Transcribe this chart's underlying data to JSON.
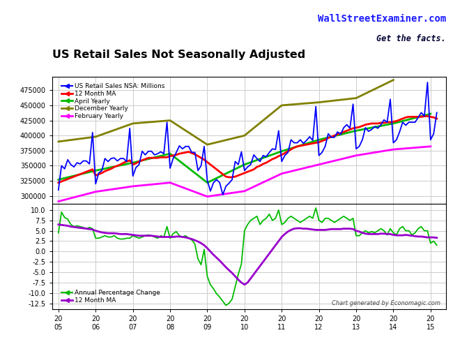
{
  "title": "US Retail Sales Not Seasonally Adjusted",
  "title_color": "#000000",
  "watermark1": "WallStreetExaminer.com",
  "watermark2": "Get the facts.",
  "watermark_color": "#1a1aff",
  "credit": "Chart generated by Economagic.com",
  "bg_color": "#FFFFFF",
  "plot_bg_color": "#FFFFFF",
  "grid_color": "#CCCCCC",
  "upper_ylim": [
    287000,
    497000
  ],
  "upper_yticks": [
    300000,
    325000,
    350000,
    375000,
    400000,
    425000,
    450000,
    475000
  ],
  "lower_ylim": [
    -14.0,
    11.5
  ],
  "lower_yticks": [
    -12.5,
    -10.0,
    -7.5,
    -5.0,
    -2.5,
    0.0,
    2.5,
    5.0,
    7.5,
    10.0
  ],
  "legend_upper": [
    {
      "label": "US Retail Sales NSA: Millions",
      "color": "#0000FF",
      "lw": 1.5
    },
    {
      "label": "12 Month MA",
      "color": "#FF0000",
      "lw": 2
    },
    {
      "label": "April Yearly",
      "color": "#00BB00",
      "lw": 2
    },
    {
      "label": "December Yearly",
      "color": "#808000",
      "lw": 2
    },
    {
      "label": "February Yearly",
      "color": "#FF00FF",
      "lw": 2
    }
  ],
  "legend_lower": [
    {
      "label": "Annual Percentage Change",
      "color": "#00BB00",
      "lw": 1.5
    },
    {
      "label": "12 Month MA",
      "color": "#9900CC",
      "lw": 2
    }
  ],
  "nsa_x": [
    2005.0,
    2005.083,
    2005.167,
    2005.25,
    2005.333,
    2005.417,
    2005.5,
    2005.583,
    2005.667,
    2005.75,
    2005.833,
    2005.917,
    2006.0,
    2006.083,
    2006.167,
    2006.25,
    2006.333,
    2006.417,
    2006.5,
    2006.583,
    2006.667,
    2006.75,
    2006.833,
    2006.917,
    2007.0,
    2007.083,
    2007.167,
    2007.25,
    2007.333,
    2007.417,
    2007.5,
    2007.583,
    2007.667,
    2007.75,
    2007.833,
    2007.917,
    2008.0,
    2008.083,
    2008.167,
    2008.25,
    2008.333,
    2008.417,
    2008.5,
    2008.583,
    2008.667,
    2008.75,
    2008.833,
    2008.917,
    2009.0,
    2009.083,
    2009.167,
    2009.25,
    2009.333,
    2009.417,
    2009.5,
    2009.583,
    2009.667,
    2009.75,
    2009.833,
    2009.917,
    2010.0,
    2010.083,
    2010.167,
    2010.25,
    2010.333,
    2010.417,
    2010.5,
    2010.583,
    2010.667,
    2010.75,
    2010.833,
    2010.917,
    2011.0,
    2011.083,
    2011.167,
    2011.25,
    2011.333,
    2011.417,
    2011.5,
    2011.583,
    2011.667,
    2011.75,
    2011.833,
    2011.917,
    2012.0,
    2012.083,
    2012.167,
    2012.25,
    2012.333,
    2012.417,
    2012.5,
    2012.583,
    2012.667,
    2012.75,
    2012.833,
    2012.917,
    2013.0,
    2013.083,
    2013.167,
    2013.25,
    2013.333,
    2013.417,
    2013.5,
    2013.583,
    2013.667,
    2013.75,
    2013.833,
    2013.917,
    2014.0,
    2014.083,
    2014.167,
    2014.25,
    2014.333,
    2014.417,
    2014.5,
    2014.583,
    2014.667,
    2014.75,
    2014.833,
    2014.917,
    2015.0,
    2015.083,
    2015.167
  ],
  "nsa_y": [
    310000,
    350000,
    345000,
    360000,
    352000,
    348000,
    355000,
    353000,
    358000,
    358000,
    353000,
    405000,
    320000,
    338000,
    342000,
    362000,
    357000,
    362000,
    363000,
    358000,
    362000,
    362000,
    357000,
    412000,
    333000,
    347000,
    352000,
    374000,
    368000,
    374000,
    374000,
    368000,
    370000,
    373000,
    370000,
    422000,
    346000,
    362000,
    372000,
    383000,
    378000,
    382000,
    382000,
    372000,
    372000,
    342000,
    350000,
    382000,
    326000,
    308000,
    322000,
    327000,
    322000,
    302000,
    316000,
    321000,
    327000,
    357000,
    352000,
    373000,
    342000,
    348000,
    352000,
    368000,
    362000,
    357000,
    367000,
    365000,
    372000,
    378000,
    377000,
    408000,
    357000,
    367000,
    372000,
    393000,
    388000,
    388000,
    393000,
    387000,
    392000,
    398000,
    392000,
    448000,
    367000,
    372000,
    382000,
    403000,
    397000,
    397000,
    406000,
    402000,
    413000,
    418000,
    412000,
    452000,
    378000,
    382000,
    393000,
    413000,
    407000,
    410000,
    415000,
    412000,
    418000,
    426000,
    422000,
    460000,
    388000,
    393000,
    406000,
    422000,
    417000,
    422000,
    422000,
    422000,
    430000,
    438000,
    432000,
    488000,
    393000,
    403000,
    438000
  ],
  "ma12_y": [
    322000,
    324000,
    326000,
    328000,
    330000,
    332000,
    334000,
    336000,
    338000,
    340000,
    342000,
    344000,
    334000,
    336000,
    338000,
    341000,
    343000,
    345000,
    348000,
    350000,
    352000,
    355000,
    357000,
    359000,
    352000,
    354000,
    357000,
    359000,
    361000,
    363000,
    363000,
    363000,
    363000,
    364000,
    364000,
    364000,
    366000,
    367000,
    368000,
    370000,
    371000,
    372000,
    373000,
    371000,
    369000,
    366000,
    363000,
    360000,
    356000,
    352000,
    348000,
    344000,
    340000,
    336000,
    332000,
    331000,
    331000,
    332000,
    334000,
    336000,
    338000,
    340000,
    342000,
    344000,
    348000,
    350000,
    353000,
    355000,
    358000,
    361000,
    363000,
    366000,
    368000,
    371000,
    374000,
    377000,
    380000,
    382000,
    383000,
    384000,
    385000,
    386000,
    387000,
    388000,
    389000,
    391000,
    393000,
    396000,
    398000,
    400000,
    402000,
    404000,
    406000,
    408000,
    410000,
    412000,
    413000,
    414000,
    416000,
    418000,
    419000,
    420000,
    420000,
    420000,
    421000,
    421000,
    422000,
    422000,
    423000,
    424000,
    426000,
    428000,
    430000,
    431000,
    431000,
    431000,
    431000,
    431000,
    432000,
    432000,
    431000,
    430000,
    428000
  ],
  "april_x": [
    2005,
    2006,
    2007,
    2008,
    2009,
    2010,
    2011,
    2012,
    2013,
    2014,
    2015
  ],
  "april_y": [
    327000,
    342000,
    355000,
    370000,
    322000,
    352000,
    374000,
    393000,
    408000,
    420000,
    436000
  ],
  "dec_x": [
    2005,
    2006,
    2007,
    2008,
    2009,
    2010,
    2011,
    2012,
    2013,
    2014
  ],
  "dec_y": [
    390000,
    398000,
    420000,
    425000,
    385000,
    400000,
    450000,
    455000,
    462000,
    492000
  ],
  "feb_x": [
    2005,
    2006,
    2007,
    2008,
    2009,
    2010,
    2011,
    2012,
    2013,
    2014,
    2015
  ],
  "feb_y": [
    291000,
    307000,
    316000,
    322000,
    299000,
    308000,
    337000,
    352000,
    367000,
    377000,
    382000
  ],
  "pct_x": [
    2005.0,
    2005.083,
    2005.167,
    2005.25,
    2005.333,
    2005.417,
    2005.5,
    2005.583,
    2005.667,
    2005.75,
    2005.833,
    2005.917,
    2006.0,
    2006.083,
    2006.167,
    2006.25,
    2006.333,
    2006.417,
    2006.5,
    2006.583,
    2006.667,
    2006.75,
    2006.833,
    2006.917,
    2007.0,
    2007.083,
    2007.167,
    2007.25,
    2007.333,
    2007.417,
    2007.5,
    2007.583,
    2007.667,
    2007.75,
    2007.833,
    2007.917,
    2008.0,
    2008.083,
    2008.167,
    2008.25,
    2008.333,
    2008.417,
    2008.5,
    2008.583,
    2008.667,
    2008.75,
    2008.833,
    2008.917,
    2009.0,
    2009.083,
    2009.167,
    2009.25,
    2009.333,
    2009.417,
    2009.5,
    2009.583,
    2009.667,
    2009.75,
    2009.833,
    2009.917,
    2010.0,
    2010.083,
    2010.167,
    2010.25,
    2010.333,
    2010.417,
    2010.5,
    2010.583,
    2010.667,
    2010.75,
    2010.833,
    2010.917,
    2011.0,
    2011.083,
    2011.167,
    2011.25,
    2011.333,
    2011.417,
    2011.5,
    2011.583,
    2011.667,
    2011.75,
    2011.833,
    2011.917,
    2012.0,
    2012.083,
    2012.167,
    2012.25,
    2012.333,
    2012.417,
    2012.5,
    2012.583,
    2012.667,
    2012.75,
    2012.833,
    2012.917,
    2013.0,
    2013.083,
    2013.167,
    2013.25,
    2013.333,
    2013.417,
    2013.5,
    2013.583,
    2013.667,
    2013.75,
    2013.833,
    2013.917,
    2014.0,
    2014.083,
    2014.167,
    2014.25,
    2014.333,
    2014.417,
    2014.5,
    2014.583,
    2014.667,
    2014.75,
    2014.833,
    2014.917,
    2015.0,
    2015.083,
    2015.167
  ],
  "pct_y": [
    4.5,
    9.5,
    8.2,
    7.8,
    6.5,
    6.0,
    6.2,
    6.0,
    5.8,
    5.5,
    5.8,
    5.5,
    3.2,
    3.2,
    3.5,
    3.8,
    3.5,
    3.5,
    3.8,
    3.2,
    3.0,
    3.0,
    3.2,
    3.2,
    3.8,
    3.5,
    3.2,
    3.5,
    3.8,
    4.0,
    3.8,
    3.5,
    3.2,
    3.8,
    3.5,
    6.0,
    3.2,
    4.3,
    4.8,
    3.8,
    3.5,
    3.8,
    3.2,
    2.8,
    1.8,
    -1.8,
    -3.2,
    0.5,
    -6.0,
    -8.0,
    -9.0,
    -10.2,
    -11.0,
    -12.0,
    -13.0,
    -12.5,
    -11.5,
    -8.5,
    -5.5,
    -3.0,
    5.0,
    6.5,
    7.5,
    8.0,
    8.5,
    6.5,
    7.5,
    8.0,
    9.0,
    7.5,
    8.0,
    10.0,
    6.5,
    7.0,
    8.0,
    8.5,
    8.0,
    7.5,
    7.0,
    7.5,
    8.0,
    8.5,
    8.0,
    10.5,
    7.5,
    7.0,
    8.0,
    8.0,
    7.5,
    7.0,
    7.5,
    8.0,
    8.5,
    8.0,
    7.5,
    8.0,
    3.8,
    3.8,
    4.5,
    5.0,
    4.5,
    4.8,
    4.5,
    5.0,
    5.5,
    5.0,
    4.0,
    5.5,
    4.5,
    4.0,
    5.5,
    6.0,
    5.0,
    5.0,
    4.0,
    4.5,
    5.5,
    6.0,
    5.0,
    5.0,
    2.0,
    2.5,
    1.5
  ],
  "pct_ma_y": [
    6.5,
    6.4,
    6.3,
    6.2,
    6.0,
    5.9,
    5.8,
    5.7,
    5.6,
    5.5,
    5.4,
    5.3,
    5.0,
    4.8,
    4.6,
    4.5,
    4.4,
    4.4,
    4.4,
    4.3,
    4.2,
    4.2,
    4.2,
    4.1,
    4.0,
    3.9,
    3.8,
    3.8,
    3.8,
    3.8,
    3.8,
    3.7,
    3.6,
    3.5,
    3.5,
    3.5,
    3.5,
    3.5,
    3.6,
    3.6,
    3.5,
    3.4,
    3.2,
    3.0,
    2.7,
    2.4,
    2.0,
    1.5,
    0.8,
    0.0,
    -0.8,
    -1.5,
    -2.2,
    -3.0,
    -3.8,
    -4.5,
    -5.2,
    -6.0,
    -6.8,
    -7.5,
    -8.0,
    -7.5,
    -6.5,
    -5.5,
    -4.5,
    -3.5,
    -2.5,
    -1.5,
    -0.5,
    0.5,
    1.5,
    2.5,
    3.5,
    4.2,
    4.8,
    5.2,
    5.5,
    5.6,
    5.6,
    5.5,
    5.5,
    5.4,
    5.3,
    5.2,
    5.2,
    5.2,
    5.2,
    5.3,
    5.4,
    5.4,
    5.4,
    5.4,
    5.5,
    5.5,
    5.5,
    5.4,
    5.0,
    4.8,
    4.5,
    4.3,
    4.2,
    4.2,
    4.2,
    4.2,
    4.3,
    4.3,
    4.2,
    4.2,
    4.0,
    3.9,
    3.9,
    3.9,
    4.0,
    3.9,
    3.8,
    3.7,
    3.6,
    3.6,
    3.5,
    3.4,
    3.4,
    3.4,
    3.3
  ]
}
